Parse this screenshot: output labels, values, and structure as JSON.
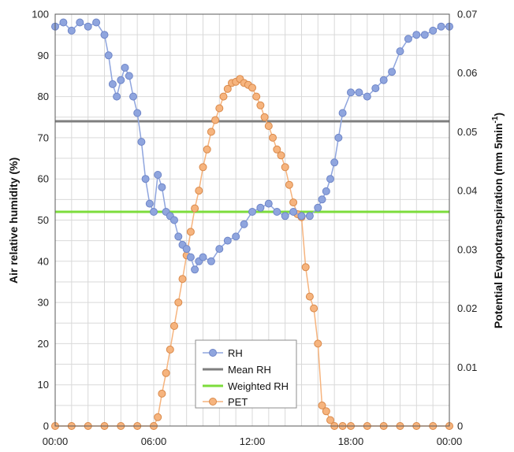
{
  "chart_data": {
    "type": "line",
    "xlabel": "",
    "ylabel": "Air relative humidity (%)",
    "y2label_main": "Potential Evapotranspiration (mm 5min",
    "y2label_sup": "-1",
    "y2label_close": ")",
    "x_ticks": [
      "00:00",
      "06:00",
      "12:00",
      "18:00",
      "00:00"
    ],
    "x_range_hours": [
      0,
      24
    ],
    "ylim": [
      0,
      100
    ],
    "y2lim": [
      0,
      0.07
    ],
    "y_ticks": [
      "0",
      "10",
      "20",
      "30",
      "40",
      "50",
      "60",
      "70",
      "80",
      "90",
      "100"
    ],
    "y2_ticks": [
      "0",
      "0.01",
      "0.02",
      "0.03",
      "0.04",
      "0.05",
      "0.06",
      "0.07"
    ],
    "grid": true,
    "legend_position": "bottom-center",
    "colors": {
      "rh": "#8fa5de",
      "rh_edge": "#6f86c8",
      "mean_rh": "#7f7f7f",
      "weighted_rh": "#7ddc3c",
      "pet": "#f6b47e",
      "pet_edge": "#d9894a",
      "grid": "#d9d9d9"
    },
    "series": [
      {
        "name": "RH",
        "axis": "left",
        "x_hours": [
          0,
          0.5,
          1,
          1.5,
          2,
          2.5,
          3,
          3.25,
          3.5,
          3.75,
          4,
          4.25,
          4.5,
          4.75,
          5,
          5.25,
          5.5,
          5.75,
          6,
          6.25,
          6.5,
          6.75,
          7,
          7.25,
          7.5,
          7.75,
          8,
          8.25,
          8.5,
          8.75,
          9,
          9.5,
          10,
          10.5,
          11,
          11.5,
          12,
          12.5,
          13,
          13.5,
          14,
          14.5,
          15,
          15.5,
          16,
          16.25,
          16.5,
          16.75,
          17,
          17.25,
          17.5,
          18,
          18.5,
          19,
          19.5,
          20,
          20.5,
          21,
          21.5,
          22,
          22.5,
          23,
          23.5,
          24
        ],
        "values": [
          97,
          98,
          96,
          98,
          97,
          98,
          95,
          90,
          83,
          80,
          84,
          87,
          85,
          80,
          76,
          69,
          60,
          54,
          52,
          61,
          58,
          52,
          51,
          50,
          46,
          44,
          43,
          41,
          38,
          40,
          41,
          40,
          43,
          45,
          46,
          49,
          52,
          53,
          54,
          52,
          51,
          52,
          51,
          51,
          53,
          55,
          57,
          60,
          64,
          70,
          76,
          81,
          81,
          80,
          82,
          84,
          86,
          91,
          94,
          95,
          95,
          96,
          97,
          97
        ]
      },
      {
        "name": "Mean RH",
        "axis": "left",
        "x_hours": [
          0,
          24
        ],
        "values": [
          74,
          74
        ]
      },
      {
        "name": "Weighted RH",
        "axis": "left",
        "x_hours": [
          0,
          24
        ],
        "values": [
          52,
          52
        ]
      },
      {
        "name": "PET",
        "axis": "right",
        "x_hours": [
          0,
          1,
          2,
          3,
          4,
          5,
          6,
          6.25,
          6.5,
          6.75,
          7,
          7.25,
          7.5,
          7.75,
          8,
          8.25,
          8.5,
          8.75,
          9,
          9.25,
          9.5,
          9.75,
          10,
          10.25,
          10.5,
          10.75,
          11,
          11.25,
          11.5,
          11.75,
          12,
          12.25,
          12.5,
          12.75,
          13,
          13.25,
          13.5,
          13.75,
          14,
          14.25,
          14.5,
          14.75,
          15,
          15.25,
          15.5,
          15.75,
          16,
          16.25,
          16.5,
          16.75,
          17,
          17.5,
          18,
          19,
          20,
          21,
          22,
          23,
          24
        ],
        "values": [
          0,
          0,
          0,
          0,
          0,
          0,
          0,
          0.0015,
          0.0055,
          0.009,
          0.013,
          0.017,
          0.021,
          0.025,
          0.029,
          0.033,
          0.037,
          0.04,
          0.044,
          0.047,
          0.05,
          0.052,
          0.054,
          0.056,
          0.0573,
          0.0583,
          0.0585,
          0.059,
          0.0583,
          0.058,
          0.0575,
          0.056,
          0.0545,
          0.0525,
          0.051,
          0.049,
          0.047,
          0.046,
          0.044,
          0.041,
          0.038,
          0.036,
          0.0355,
          0.027,
          0.022,
          0.02,
          0.014,
          0.0035,
          0.0025,
          0.001,
          0,
          0,
          0,
          0,
          0,
          0,
          0,
          0,
          0
        ]
      }
    ]
  }
}
